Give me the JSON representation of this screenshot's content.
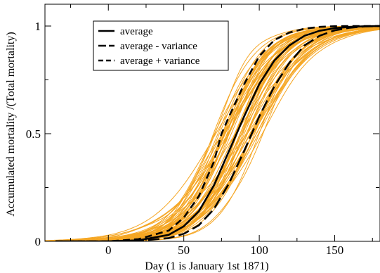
{
  "chart_data": {
    "type": "line",
    "title": "",
    "xlabel": "Day (1 is January 1st 1871)",
    "ylabel": "Accumulated mortality /(Total mortality)",
    "xlim": [
      -42,
      180
    ],
    "ylim": [
      0,
      1.0
    ],
    "x_ticks": [
      0,
      50,
      100,
      150
    ],
    "x_tick_labels": [
      "0",
      "50",
      "100",
      "150"
    ],
    "y_ticks": [
      0,
      0.5,
      1
    ],
    "y_tick_labels": [
      "0",
      "0.5",
      "1"
    ],
    "grid": false,
    "legend_position": "top-left",
    "ensemble": {
      "description_color": "#f5a623",
      "count": 60,
      "midpoint_range_days": [
        68,
        102
      ],
      "steepness_range_per_day": [
        0.045,
        0.075
      ]
    },
    "series": [
      {
        "name": "average",
        "style": "solid",
        "color": "#000000",
        "x": [
          -35,
          0,
          20,
          40,
          50,
          60,
          70,
          80,
          85,
          90,
          100,
          110,
          120,
          130,
          140,
          150,
          160,
          170,
          180
        ],
        "y": [
          0.0,
          0.0,
          0.005,
          0.03,
          0.07,
          0.14,
          0.26,
          0.42,
          0.5,
          0.58,
          0.73,
          0.84,
          0.91,
          0.955,
          0.978,
          0.99,
          0.996,
          0.999,
          1.0
        ]
      },
      {
        "name": "average - variance",
        "style": "long-dash",
        "color": "#000000",
        "x": [
          -35,
          0,
          20,
          40,
          50,
          60,
          70,
          80,
          90,
          95,
          100,
          110,
          120,
          130,
          140,
          150,
          160,
          170,
          180
        ],
        "y": [
          0.0,
          0.0,
          0.002,
          0.015,
          0.035,
          0.075,
          0.15,
          0.27,
          0.42,
          0.5,
          0.58,
          0.72,
          0.83,
          0.91,
          0.955,
          0.98,
          0.992,
          0.998,
          1.0
        ]
      },
      {
        "name": "average + variance",
        "style": "short-dash",
        "color": "#000000",
        "x": [
          -35,
          0,
          20,
          40,
          50,
          60,
          70,
          75,
          80,
          90,
          100,
          110,
          120,
          130,
          140,
          150,
          160,
          170,
          180
        ],
        "y": [
          0.0,
          0.0,
          0.01,
          0.05,
          0.11,
          0.21,
          0.37,
          0.5,
          0.58,
          0.73,
          0.86,
          0.935,
          0.97,
          0.988,
          0.996,
          0.999,
          1.0,
          1.0,
          1.0
        ]
      }
    ]
  }
}
